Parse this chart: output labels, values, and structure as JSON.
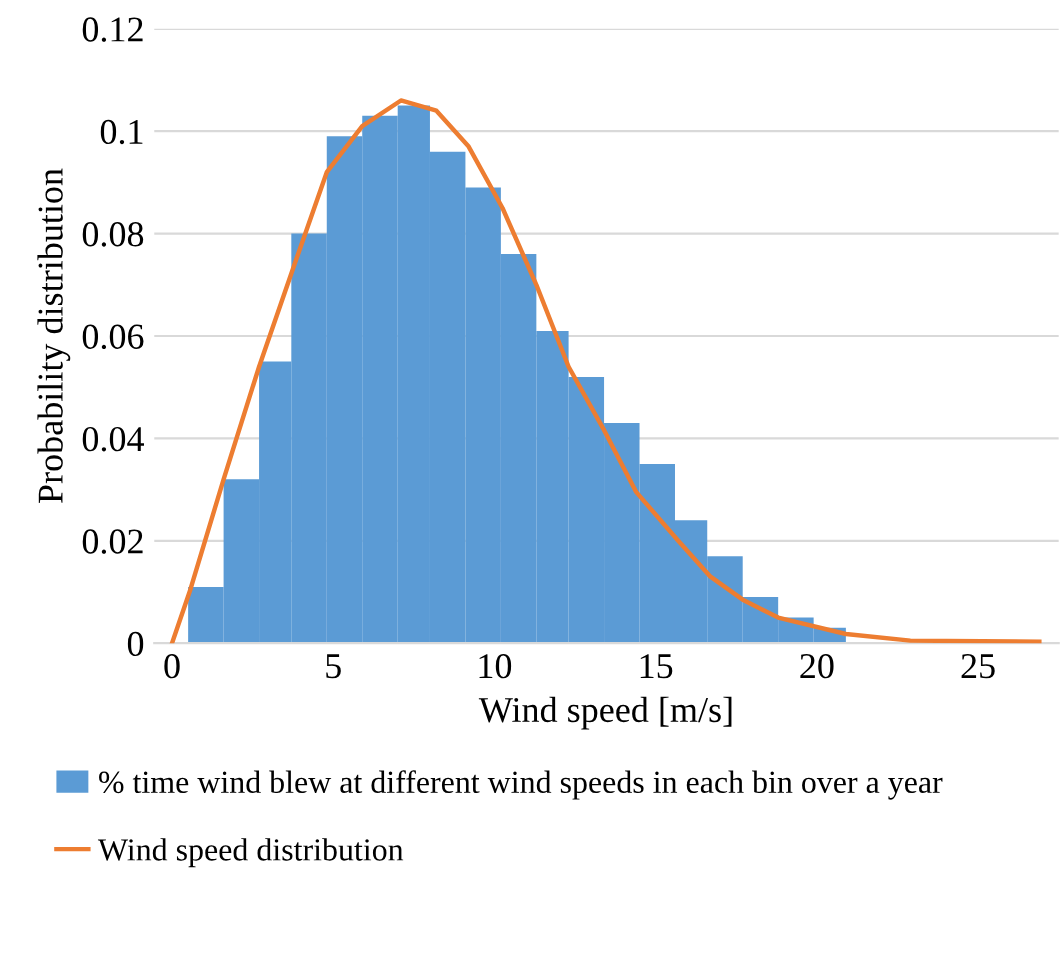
{
  "chart_data": {
    "type": "histogram",
    "xlabel": "Wind speed [m/s]",
    "ylabel": "Probability distribution",
    "bins": [
      0.5,
      1.6,
      2.7,
      3.7,
      4.8,
      5.9,
      7.0,
      8.0,
      9.1,
      10.2,
      11.3,
      12.3,
      13.4,
      14.5,
      15.6,
      16.6,
      17.7,
      18.8,
      19.9,
      20.9
    ],
    "series": [
      {
        "name": "% time wind blew at different wind speeds in each bin over a year",
        "color": "#5b9bd5",
        "values": [
          0.011,
          0.032,
          0.055,
          0.08,
          0.099,
          0.103,
          0.105,
          0.096,
          0.089,
          0.076,
          0.061,
          0.052,
          0.043,
          0.035,
          0.024,
          0.017,
          0.009,
          0.005,
          0.003
        ]
      },
      {
        "type": "line",
        "name": "Wind speed distribution",
        "color": "#ed7d31",
        "x": [
          0,
          0.57,
          1.6,
          2.7,
          3.8,
          4.8,
          5.9,
          7.1,
          8.2,
          9.2,
          10.25,
          11.3,
          12.3,
          13.4,
          14.4,
          15.7,
          16.7,
          17.7,
          18.8,
          20.9,
          22.9,
          26.9
        ],
        "values": [
          0,
          0.0105,
          0.032,
          0.054,
          0.074,
          0.092,
          0.101,
          0.106,
          0.104,
          0.097,
          0.085,
          0.07,
          0.054,
          0.0416,
          0.0295,
          0.02,
          0.013,
          0.0085,
          0.005,
          0.0018,
          0.0005,
          0.0003
        ]
      }
    ],
    "xlim": [
      -0.55,
      27.5
    ],
    "xticks": [
      0,
      5,
      10,
      15,
      20,
      25
    ],
    "ylim": [
      0,
      0.12
    ],
    "yticks": [
      0,
      0.02,
      0.04,
      0.06,
      0.08,
      0.1,
      0.12
    ],
    "grid": "y",
    "legend": "bottom",
    "marker": "none",
    "line_style": "solid"
  }
}
